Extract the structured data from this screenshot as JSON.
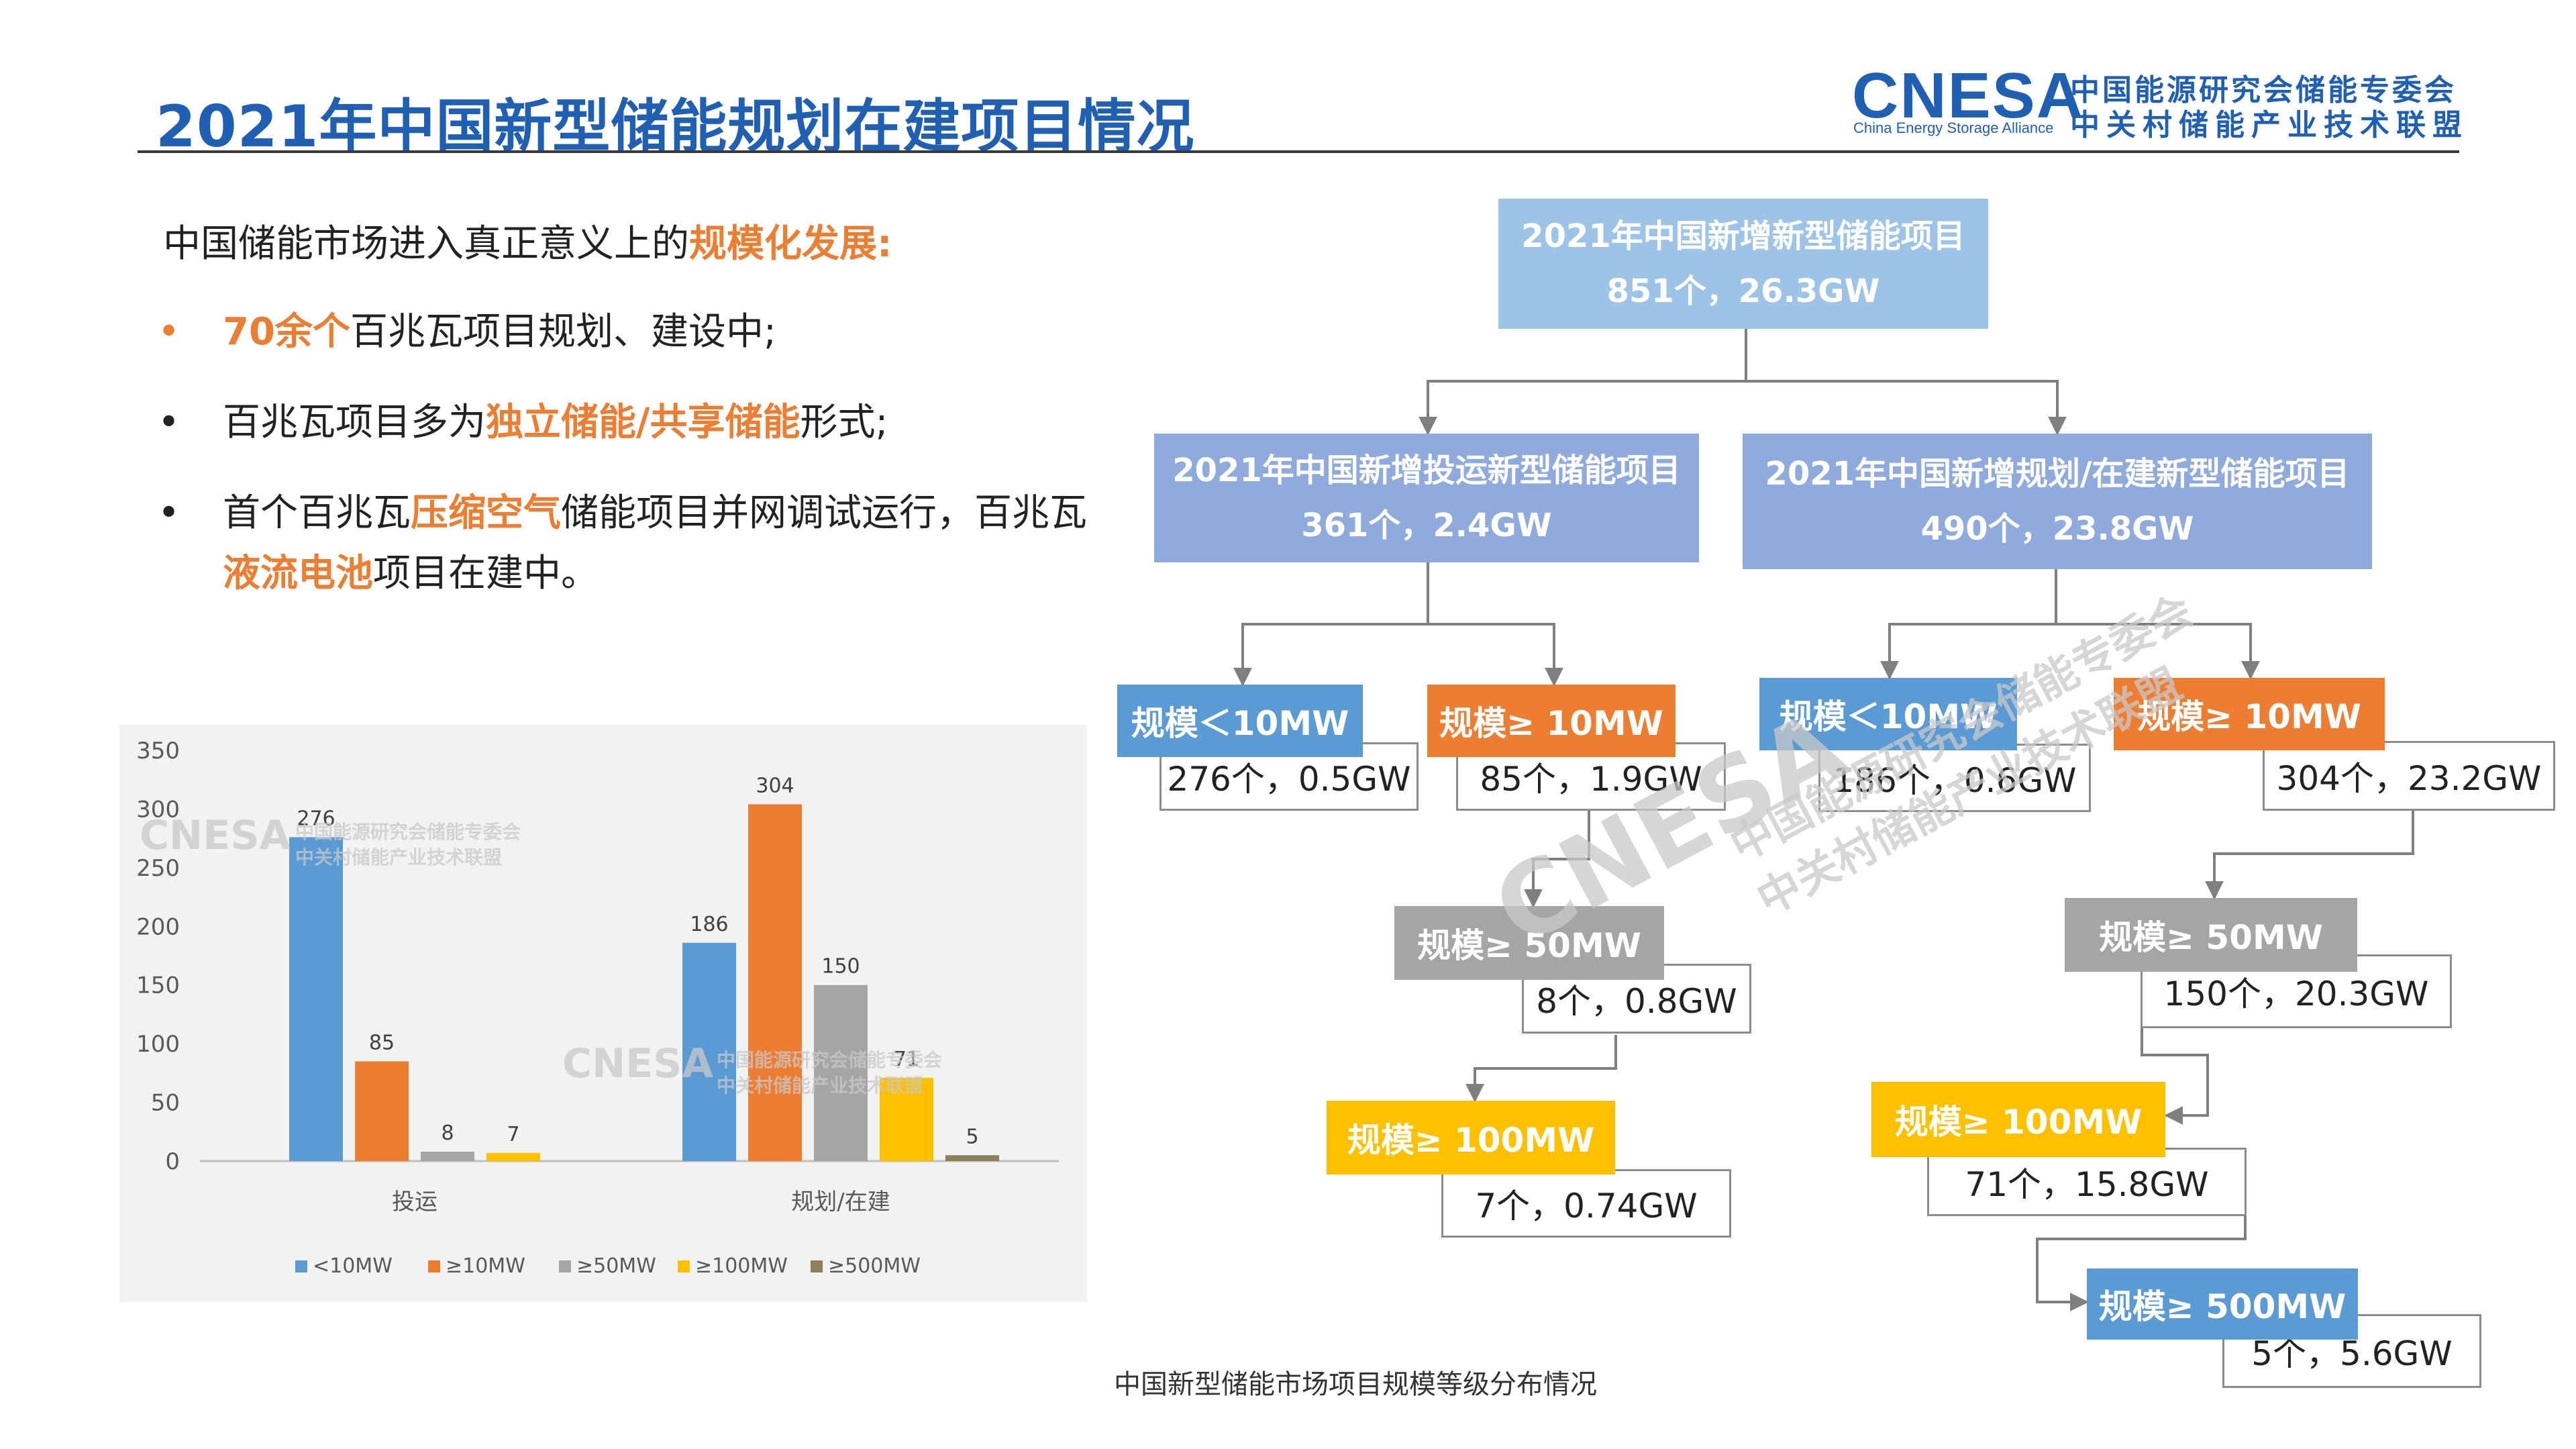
{
  "title": "2021年中国新型储能规划在建项目情况",
  "logo": {
    "mark": "CNESA",
    "sub": "China Energy Storage Alliance",
    "cn_line1": "中国能源研究会储能专委会",
    "cn_line2": "中关村储能产业技术联盟"
  },
  "intro": {
    "prefix": "中国储能市场进入真正意义上的",
    "highlight": "规模化发展:"
  },
  "bullets": [
    {
      "dot": "•",
      "highlight": "70余个",
      "text": "百兆瓦项目规划、建设中;"
    },
    {
      "dot": "•",
      "pre": "百兆瓦项目多为",
      "highlight": "独立储能/共享储能",
      "post": "形式;"
    },
    {
      "dot": "•",
      "pre": "首个百兆瓦",
      "highlight1": "压缩空气",
      "mid": "储能项目并网调试运行，百兆瓦",
      "highlight2": "液流电池",
      "post": "项目在建中。"
    }
  ],
  "chart_data": {
    "type": "bar",
    "categories": [
      "投运",
      "规划/在建"
    ],
    "series": [
      {
        "name": "<10MW",
        "values": [
          276,
          186
        ]
      },
      {
        "name": "≥10MW",
        "values": [
          85,
          304
        ]
      },
      {
        "name": "≥50MW",
        "values": [
          8,
          150
        ]
      },
      {
        "name": "≥100MW",
        "values": [
          7,
          71
        ]
      },
      {
        "name": "≥500MW",
        "values": [
          null,
          5
        ]
      }
    ],
    "ylim": [
      0,
      350
    ],
    "yticks": [
      0,
      50,
      100,
      150,
      200,
      250,
      300,
      350
    ],
    "legend": "bottom",
    "grid": false,
    "colors": [
      "#5b9bd5",
      "#ed7d31",
      "#a5a5a5",
      "#ffc000",
      "#8c7f5a"
    ]
  },
  "tree": {
    "root": {
      "title": "2021年中国新增新型储能项目",
      "value": "851个，26.3GW"
    },
    "left": {
      "title": "2021年中国新增投运新型储能项目",
      "value": "361个，2.4GW"
    },
    "right": {
      "title": "2021年中国新增规划/在建新型储能项目",
      "value": "490个，23.8GW"
    },
    "l_small": {
      "title": "规模＜10MW",
      "value": "276个，0.5GW"
    },
    "l_10": {
      "title": "规模≥ 10MW",
      "value": "85个，1.9GW"
    },
    "l_50": {
      "title": "规模≥ 50MW",
      "value": "8个，0.8GW"
    },
    "l_100": {
      "title": "规模≥ 100MW",
      "value": "7个，0.74GW"
    },
    "r_small": {
      "title": "规模＜10MW",
      "value": "186个，0.6GW"
    },
    "r_10": {
      "title": "规模≥ 10MW",
      "value": "304个，23.2GW"
    },
    "r_50": {
      "title": "规模≥ 50MW",
      "value": "150个，20.3GW"
    },
    "r_100": {
      "title": "规模≥ 100MW",
      "value": "71个，15.8GW"
    },
    "r_500": {
      "title": "规模≥ 500MW",
      "value": "5个，5.6GW"
    }
  },
  "caption": "中国新型储能市场项目规模等级分布情况"
}
